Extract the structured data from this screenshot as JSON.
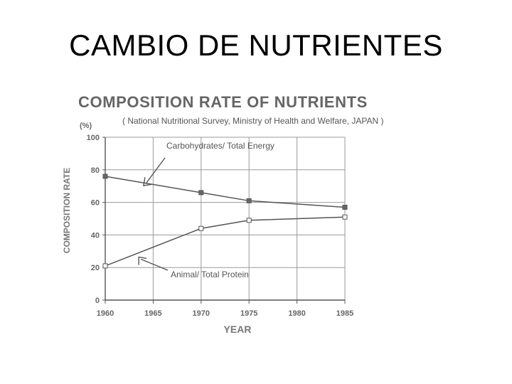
{
  "slide": {
    "title": "CAMBIO DE NUTRIENTES"
  },
  "chart_data": {
    "type": "line",
    "title": "COMPOSITION RATE OF NUTRIENTS",
    "subtitle": "( National Nutritional Survey, Ministry of Health and Welfare, JAPAN )",
    "unit": "(%)",
    "xlabel": "YEAR",
    "ylabel": "COMPOSITION RATE",
    "x": [
      1960,
      1970,
      1975,
      1985
    ],
    "x_ticks": [
      "1960",
      "1965",
      "1970",
      "1975",
      "1980",
      "1985"
    ],
    "xlim": [
      1960,
      1985
    ],
    "y_ticks": [
      "0",
      "20",
      "40",
      "60",
      "80",
      "100"
    ],
    "ylim": [
      0,
      100
    ],
    "grid": true,
    "series": [
      {
        "name": "Carbohydrates/ Total Energy",
        "values": [
          76,
          66,
          61,
          57
        ],
        "marker": "filled-square"
      },
      {
        "name": "Animal/ Total Protein",
        "values": [
          21,
          44,
          49,
          51
        ],
        "marker": "open-square"
      }
    ],
    "annotations": [
      {
        "text": "Carbohydrates/ Total Energy",
        "series": 0
      },
      {
        "text": "Animal/ Total Protein",
        "series": 1
      }
    ],
    "colors": {
      "line": "#555555",
      "grid": "#9a9a9a",
      "text": "#666666"
    }
  }
}
